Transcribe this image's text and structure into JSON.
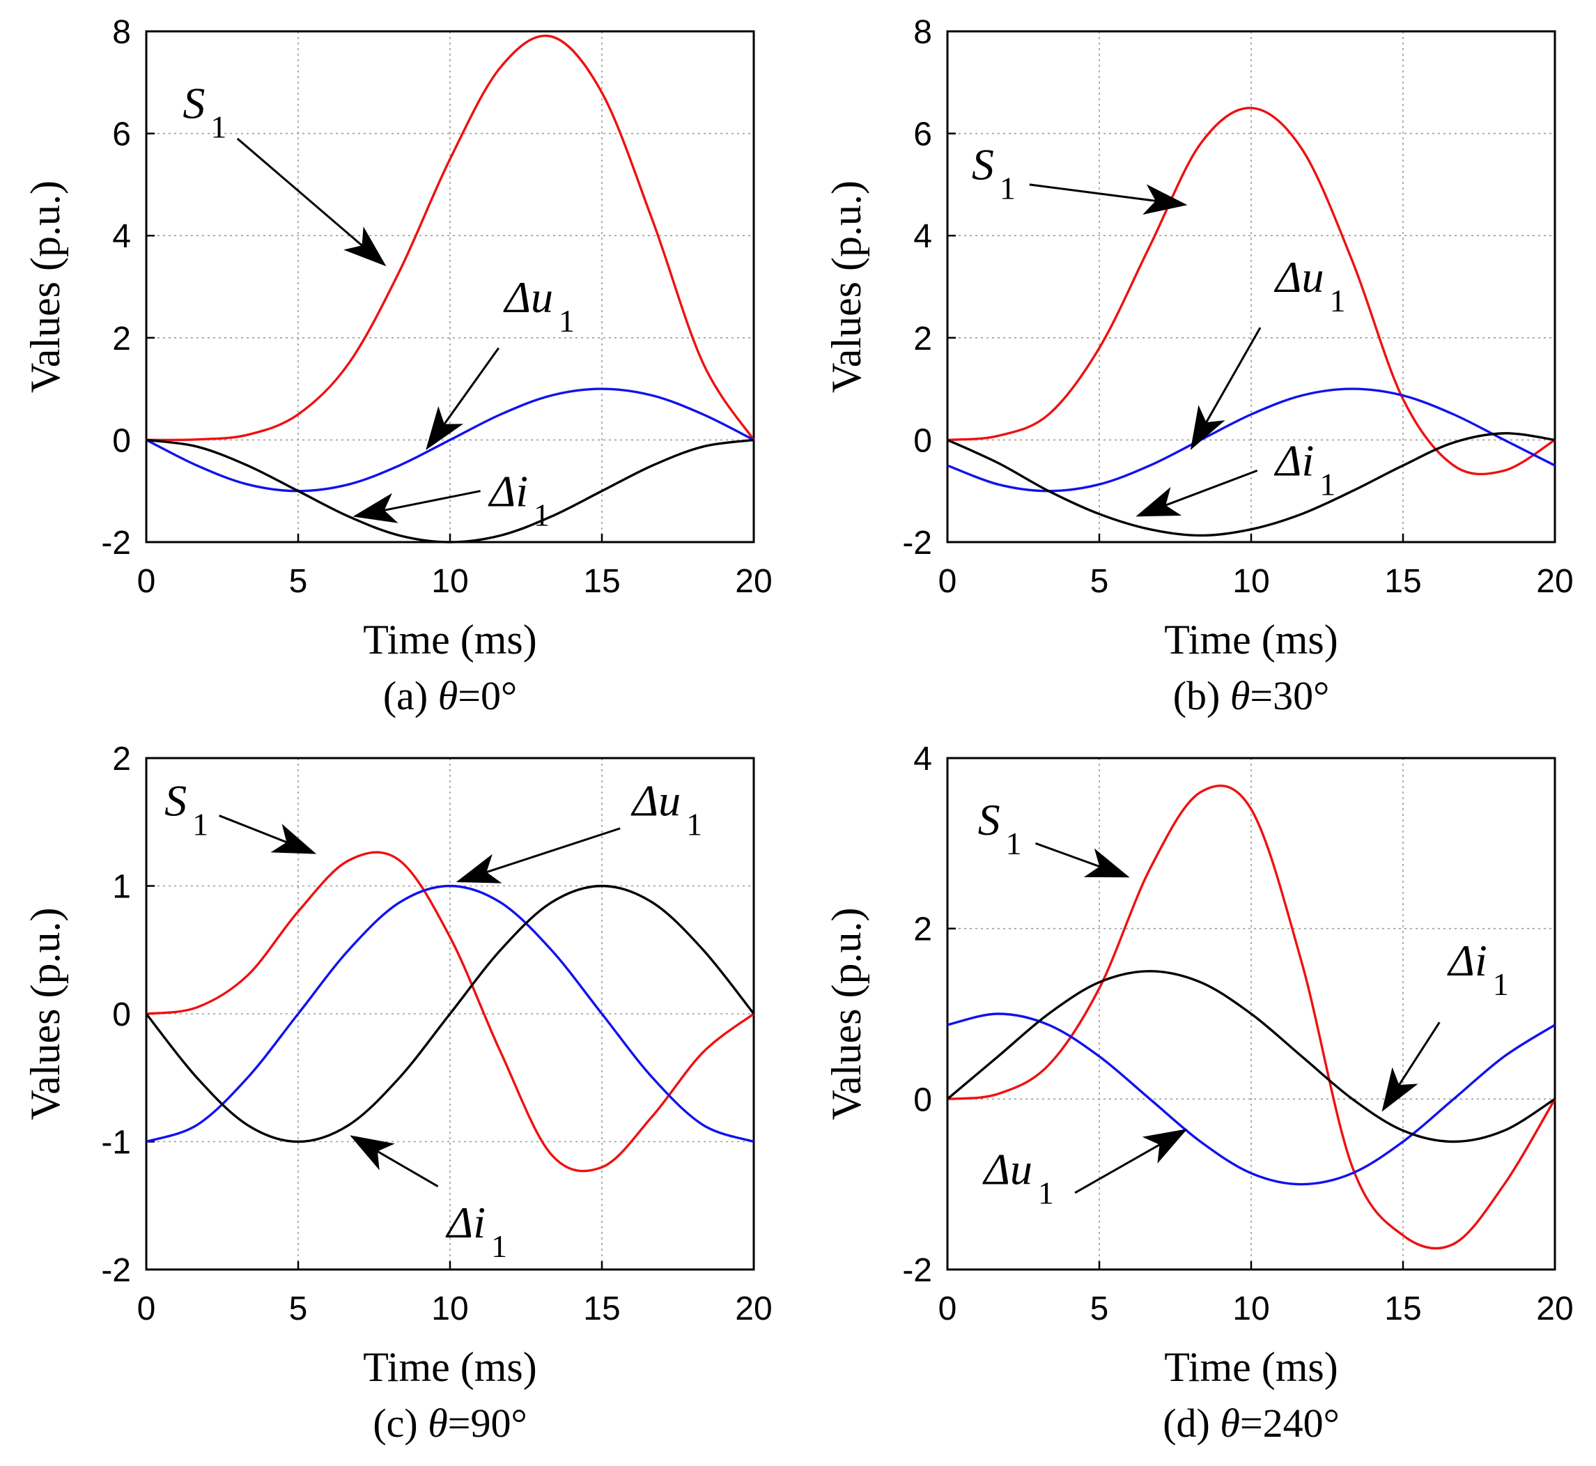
{
  "colors": {
    "s1": "#ee1111",
    "du": "#1111ee",
    "di": "#000000"
  },
  "chart_data": [
    {
      "type": "line",
      "panel": "a",
      "caption_prefix": "(a) ",
      "caption_var": "θ",
      "caption_suffix": "=0°",
      "xlabel": "Time (ms)",
      "ylabel": "Values (p.u.)",
      "xlim": [
        0,
        20
      ],
      "ylim": [
        -2,
        8
      ],
      "xticks": [
        0,
        5,
        10,
        15,
        20
      ],
      "xtick_labels": [
        "0",
        "5",
        "10",
        "15",
        "20"
      ],
      "yticks": [
        -2,
        0,
        2,
        4,
        6,
        8
      ],
      "ytick_labels": [
        "-2",
        "0",
        "2",
        "4",
        "6",
        "8"
      ],
      "grid": true,
      "series": [
        {
          "name": "S1",
          "color": "s1",
          "values": [
            0,
            0.01,
            0.1,
            0.5,
            1.5,
            3.3,
            5.5,
            7.3,
            7.9,
            6.8,
            4.3,
            1.5,
            0
          ]
        },
        {
          "name": "Δu1",
          "color": "du",
          "values": [
            0,
            -0.5,
            -0.87,
            -1.0,
            -0.87,
            -0.5,
            0,
            0.5,
            0.87,
            1.0,
            0.87,
            0.5,
            0
          ]
        },
        {
          "name": "Δi1",
          "color": "di",
          "values": [
            0,
            -0.13,
            -0.5,
            -1.0,
            -1.5,
            -1.87,
            -2.0,
            -1.87,
            -1.5,
            -1.0,
            -0.5,
            -0.13,
            0
          ]
        }
      ],
      "annotations": [
        {
          "var": "S",
          "sub": "1",
          "tx": 1.2,
          "ty": 6.3,
          "ax": 3.0,
          "ay": 5.9,
          "hx": 7.9,
          "hy": 3.4
        },
        {
          "var": "Δu",
          "sub": "1",
          "tx": 11.8,
          "ty": 2.5,
          "ax": 11.6,
          "ay": 1.8,
          "hx": 9.2,
          "hy": -0.2
        },
        {
          "var": "Δi",
          "sub": "1",
          "tx": 11.3,
          "ty": -1.3,
          "ax": 11.0,
          "ay": -1.0,
          "hx": 6.8,
          "hy": -1.5
        }
      ]
    },
    {
      "type": "line",
      "panel": "b",
      "caption_prefix": "(b) ",
      "caption_var": "θ",
      "caption_suffix": "=30°",
      "xlabel": "Time (ms)",
      "ylabel": "Values (p.u.)",
      "xlim": [
        0,
        20
      ],
      "ylim": [
        -2,
        8
      ],
      "xticks": [
        0,
        5,
        10,
        15,
        20
      ],
      "xtick_labels": [
        "0",
        "5",
        "10",
        "15",
        "20"
      ],
      "yticks": [
        -2,
        0,
        2,
        4,
        6,
        8
      ],
      "ytick_labels": [
        "-2",
        "0",
        "2",
        "4",
        "6",
        "8"
      ],
      "grid": true,
      "series": [
        {
          "name": "S1",
          "color": "s1",
          "values": [
            0,
            0.08,
            0.5,
            1.8,
            3.8,
            5.8,
            6.5,
            5.7,
            3.5,
            0.8,
            -0.5,
            -0.6,
            0
          ]
        },
        {
          "name": "Δu1",
          "color": "du",
          "values": [
            -0.5,
            -0.87,
            -1.0,
            -0.87,
            -0.5,
            0,
            0.5,
            0.87,
            1.0,
            0.87,
            0.5,
            0,
            -0.5
          ]
        },
        {
          "name": "Δi1",
          "color": "di",
          "values": [
            0,
            -0.45,
            -1.0,
            -1.45,
            -1.75,
            -1.87,
            -1.75,
            -1.45,
            -1.0,
            -0.5,
            -0.05,
            0.13,
            0
          ]
        }
      ],
      "annotations": [
        {
          "var": "S",
          "sub": "1",
          "tx": 0.8,
          "ty": 5.1,
          "ax": 2.7,
          "ay": 5.0,
          "hx": 7.9,
          "hy": 4.6
        },
        {
          "var": "Δu",
          "sub": "1",
          "tx": 10.8,
          "ty": 2.9,
          "ax": 10.3,
          "ay": 2.2,
          "hx": 8.0,
          "hy": -0.2
        },
        {
          "var": "Δi",
          "sub": "1",
          "tx": 10.8,
          "ty": -0.7,
          "ax": 10.2,
          "ay": -0.6,
          "hx": 6.2,
          "hy": -1.5
        }
      ]
    },
    {
      "type": "line",
      "panel": "c",
      "caption_prefix": "(c) ",
      "caption_var": "θ",
      "caption_suffix": "=90°",
      "xlabel": "Time (ms)",
      "ylabel": "Values (p.u.)",
      "xlim": [
        0,
        20
      ],
      "ylim": [
        -2,
        2
      ],
      "xticks": [
        0,
        5,
        10,
        15,
        20
      ],
      "xtick_labels": [
        "0",
        "5",
        "10",
        "15",
        "20"
      ],
      "yticks": [
        -2,
        -1,
        0,
        1,
        2
      ],
      "ytick_labels": [
        "-2",
        "-1",
        "0",
        "1",
        "2"
      ],
      "grid": true,
      "series": [
        {
          "name": "S1",
          "color": "s1",
          "values": [
            0,
            0.05,
            0.3,
            0.8,
            1.2,
            1.2,
            0.6,
            -0.3,
            -1.1,
            -1.2,
            -0.8,
            -0.3,
            0
          ]
        },
        {
          "name": "Δu1",
          "color": "du",
          "values": [
            -1.0,
            -0.87,
            -0.5,
            0,
            0.5,
            0.87,
            1.0,
            0.87,
            0.5,
            0,
            -0.5,
            -0.87,
            -1.0
          ]
        },
        {
          "name": "Δi1",
          "color": "di",
          "values": [
            0,
            -0.5,
            -0.87,
            -1.0,
            -0.87,
            -0.5,
            0,
            0.5,
            0.87,
            1.0,
            0.87,
            0.5,
            0
          ]
        }
      ],
      "annotations": [
        {
          "var": "S",
          "sub": "1",
          "tx": 0.6,
          "ty": 1.55,
          "ax": 2.4,
          "ay": 1.55,
          "hx": 5.6,
          "hy": 1.25
        },
        {
          "var": "Δu",
          "sub": "1",
          "tx": 16.0,
          "ty": 1.55,
          "ax": 15.6,
          "ay": 1.45,
          "hx": 10.2,
          "hy": 1.03
        },
        {
          "var": "Δi",
          "sub": "1",
          "tx": 9.9,
          "ty": -1.75,
          "ax": 9.6,
          "ay": -1.35,
          "hx": 6.7,
          "hy": -0.95
        }
      ]
    },
    {
      "type": "line",
      "panel": "d",
      "caption_prefix": "(d) ",
      "caption_var": "θ",
      "caption_suffix": "=240°",
      "xlabel": "Time (ms)",
      "ylabel": "Values (p.u.)",
      "xlim": [
        0,
        20
      ],
      "ylim": [
        -2,
        4
      ],
      "xticks": [
        0,
        5,
        10,
        15,
        20
      ],
      "xtick_labels": [
        "0",
        "5",
        "10",
        "15",
        "20"
      ],
      "yticks": [
        -2,
        0,
        2,
        4
      ],
      "ytick_labels": [
        "-2",
        "0",
        "2",
        "4"
      ],
      "grid": true,
      "series": [
        {
          "name": "S1",
          "color": "s1",
          "values": [
            0,
            0.06,
            0.4,
            1.3,
            2.7,
            3.6,
            3.4,
            1.6,
            -0.8,
            -1.6,
            -1.7,
            -1.0,
            0
          ]
        },
        {
          "name": "Δu1",
          "color": "du",
          "values": [
            0.87,
            1.0,
            0.87,
            0.5,
            0,
            -0.5,
            -0.87,
            -1.0,
            -0.87,
            -0.5,
            0,
            0.5,
            0.87
          ]
        },
        {
          "name": "Δi1",
          "color": "di",
          "values": [
            0,
            0.5,
            1.0,
            1.37,
            1.5,
            1.37,
            1.0,
            0.5,
            0,
            -0.37,
            -0.5,
            -0.37,
            0
          ]
        }
      ],
      "annotations": [
        {
          "var": "S",
          "sub": "1",
          "tx": 1.0,
          "ty": 3.1,
          "ax": 2.9,
          "ay": 3.0,
          "hx": 6.0,
          "hy": 2.6
        },
        {
          "var": "Δi",
          "sub": "1",
          "tx": 16.5,
          "ty": 1.45,
          "ax": 16.2,
          "ay": 0.9,
          "hx": 14.3,
          "hy": -0.15
        },
        {
          "var": "Δu",
          "sub": "1",
          "tx": 1.2,
          "ty": -1.0,
          "ax": 4.2,
          "ay": -1.1,
          "hx": 7.9,
          "hy": -0.35
        }
      ]
    }
  ]
}
